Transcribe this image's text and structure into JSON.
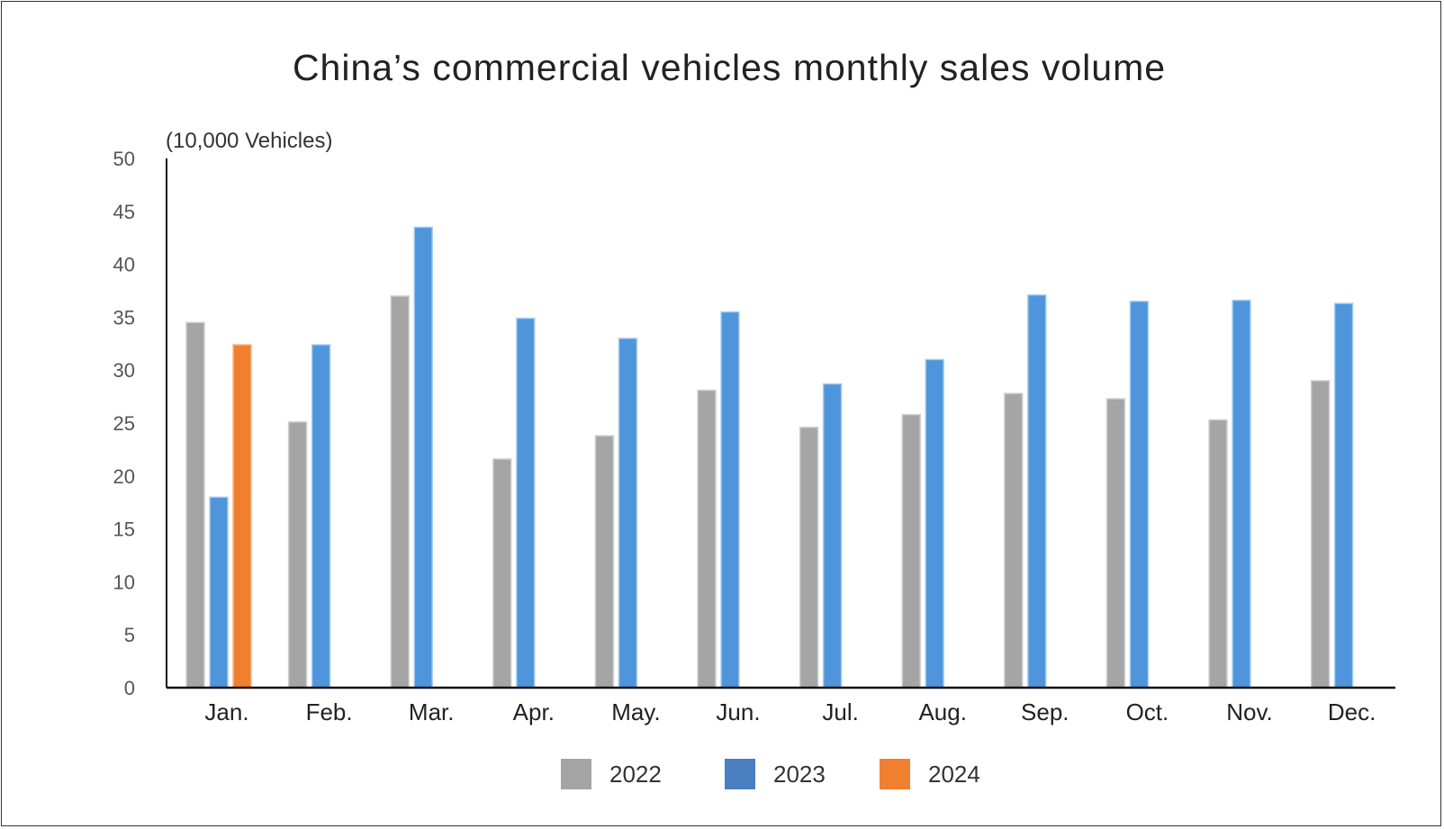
{
  "chart_data": {
    "type": "bar",
    "title": "China’s commercial vehicles monthly sales volume",
    "ylabel": "(10,000 Vehicles)",
    "xlabel": "",
    "ylim": [
      0,
      50
    ],
    "yticks": [
      "0",
      "5",
      "10",
      "15",
      "20",
      "25",
      "30",
      "35",
      "40",
      "45",
      "50"
    ],
    "grid": false,
    "legend_position": "bottom",
    "categories": [
      "Jan.",
      "Feb.",
      "Mar.",
      "Apr.",
      "May.",
      "Jun.",
      "Jul.",
      "Aug.",
      "Sep.",
      "Oct.",
      "Nov.",
      "Dec."
    ],
    "series": [
      {
        "name": "2022",
        "color": "#a5a5a5",
        "values": [
          34.5,
          25.1,
          37.0,
          21.6,
          23.8,
          28.1,
          24.6,
          25.8,
          27.8,
          27.3,
          25.3,
          29.0
        ]
      },
      {
        "name": "2023",
        "color": "#4f95db",
        "values": [
          18.0,
          32.4,
          43.5,
          34.9,
          33.0,
          35.5,
          28.7,
          31.0,
          37.1,
          36.5,
          36.6,
          36.3
        ]
      },
      {
        "name": "2024",
        "color": "#f08030",
        "values": [
          32.4,
          null,
          null,
          null,
          null,
          null,
          null,
          null,
          null,
          null,
          null,
          null
        ]
      }
    ]
  }
}
